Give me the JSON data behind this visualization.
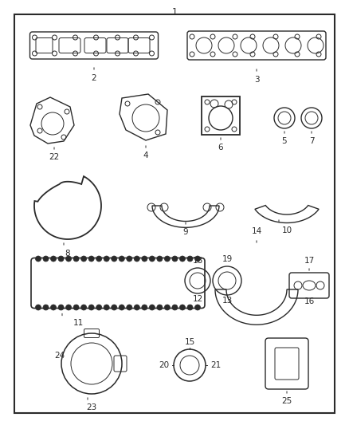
{
  "bg_color": "#ffffff",
  "border_color": "#000000",
  "line_color": "#2a2a2a",
  "fig_width": 4.38,
  "fig_height": 5.33,
  "dpi": 100
}
